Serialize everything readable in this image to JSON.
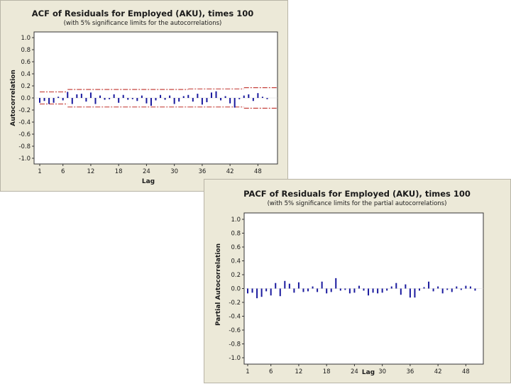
{
  "chart_data": [
    {
      "id": "acf",
      "type": "bar",
      "title": "ACF of Residuals for Employed (AKU), times 100",
      "subtitle": "(with 5% significance limits for the autocorrelations)",
      "xlabel": "Lag",
      "ylabel": "Autocorrelation",
      "xlim": [
        1,
        51
      ],
      "ylim": [
        -1.0,
        1.0
      ],
      "yticks": [
        1.0,
        0.8,
        0.6,
        0.4,
        0.2,
        0.0,
        -0.2,
        -0.4,
        -0.6,
        -0.8,
        -1.0
      ],
      "ytick_labels": [
        "1.0",
        "0.8",
        "0.6",
        "0.4",
        "0.2",
        "0.0",
        "-0.2",
        "-0.4",
        "-0.6",
        "-0.8",
        "-1.0"
      ],
      "xticks": [
        1,
        6,
        12,
        18,
        24,
        30,
        36,
        42,
        48
      ],
      "xtick_labels": [
        "1",
        "6",
        "12",
        "18",
        "24",
        "30",
        "36",
        "42",
        "48"
      ],
      "bar_color": "#1a1a9e",
      "limit_color": "#c0302a",
      "lags": [
        1,
        2,
        3,
        4,
        5,
        6,
        7,
        8,
        9,
        10,
        11,
        12,
        13,
        14,
        15,
        16,
        17,
        18,
        19,
        20,
        21,
        22,
        23,
        24,
        25,
        26,
        27,
        28,
        29,
        30,
        31,
        32,
        33,
        34,
        35,
        36,
        37,
        38,
        39,
        40,
        41,
        42,
        43,
        44,
        45,
        46,
        47,
        48,
        49,
        50
      ],
      "values": [
        -0.08,
        -0.05,
        -0.1,
        -0.08,
        0.02,
        -0.04,
        0.1,
        -0.1,
        0.06,
        0.07,
        -0.06,
        0.09,
        -0.1,
        0.04,
        -0.03,
        -0.02,
        0.06,
        -0.08,
        0.05,
        -0.03,
        -0.02,
        -0.05,
        0.04,
        -0.09,
        -0.13,
        -0.04,
        0.05,
        -0.03,
        0.04,
        -0.1,
        -0.06,
        0.03,
        0.05,
        -0.06,
        0.07,
        -0.11,
        -0.07,
        0.09,
        0.11,
        -0.04,
        0.03,
        -0.09,
        -0.16,
        -0.02,
        0.04,
        0.06,
        -0.05,
        0.08,
        0.02,
        -0.02
      ],
      "limits": [
        {
          "lag_from": 1,
          "lag_to": 7,
          "upper": 0.1,
          "lower": -0.1
        },
        {
          "lag_from": 7,
          "lag_to": 33,
          "upper": 0.14,
          "lower": -0.15
        },
        {
          "lag_from": 33,
          "lag_to": 45,
          "upper": 0.15,
          "lower": -0.15
        },
        {
          "lag_from": 45,
          "lag_to": 53,
          "upper": 0.17,
          "lower": -0.17
        }
      ]
    },
    {
      "id": "pacf",
      "type": "bar",
      "title": "PACF of Residuals for Employed (AKU), times 100",
      "subtitle": "(with 5% significance limits for the partial autocorrelations)",
      "xlabel": "Lag",
      "ylabel": "Partial Autocorrelation",
      "xlim": [
        1,
        51
      ],
      "ylim": [
        -1.0,
        1.0
      ],
      "yticks": [
        1.0,
        0.8,
        0.6,
        0.4,
        0.2,
        0.0,
        -0.2,
        -0.4,
        -0.6,
        -0.8,
        -1.0
      ],
      "ytick_labels": [
        "1.0",
        "0.8",
        "0.6",
        "0.4",
        "0.2",
        "0.0",
        "-0.2",
        "-0.4",
        "-0.6",
        "-0.8",
        "-1.0"
      ],
      "xticks": [
        1,
        6,
        12,
        18,
        24,
        30,
        36,
        42,
        48
      ],
      "xtick_labels": [
        "1",
        "6",
        "12",
        "18",
        "24",
        "30",
        "36",
        "42",
        "48"
      ],
      "bar_color": "#1a1a9e",
      "lags": [
        1,
        2,
        3,
        4,
        5,
        6,
        7,
        8,
        9,
        10,
        11,
        12,
        13,
        14,
        15,
        16,
        17,
        18,
        19,
        20,
        21,
        22,
        23,
        24,
        25,
        26,
        27,
        28,
        29,
        30,
        31,
        32,
        33,
        34,
        35,
        36,
        37,
        38,
        39,
        40,
        41,
        42,
        43,
        44,
        45,
        46,
        47,
        48,
        49,
        50
      ],
      "values": [
        -0.07,
        -0.06,
        -0.14,
        -0.12,
        -0.04,
        -0.1,
        0.08,
        -0.11,
        0.11,
        0.07,
        -0.06,
        0.09,
        -0.05,
        -0.04,
        0.03,
        -0.05,
        0.1,
        -0.07,
        -0.05,
        0.15,
        -0.03,
        -0.02,
        -0.07,
        -0.06,
        0.04,
        -0.03,
        -0.1,
        -0.06,
        -0.07,
        -0.06,
        -0.03,
        0.03,
        0.08,
        -0.09,
        0.06,
        -0.13,
        -0.13,
        -0.03,
        0.02,
        0.1,
        -0.04,
        0.03,
        -0.07,
        -0.02,
        -0.05,
        0.03,
        -0.02,
        0.04,
        0.03,
        -0.03
      ]
    }
  ]
}
